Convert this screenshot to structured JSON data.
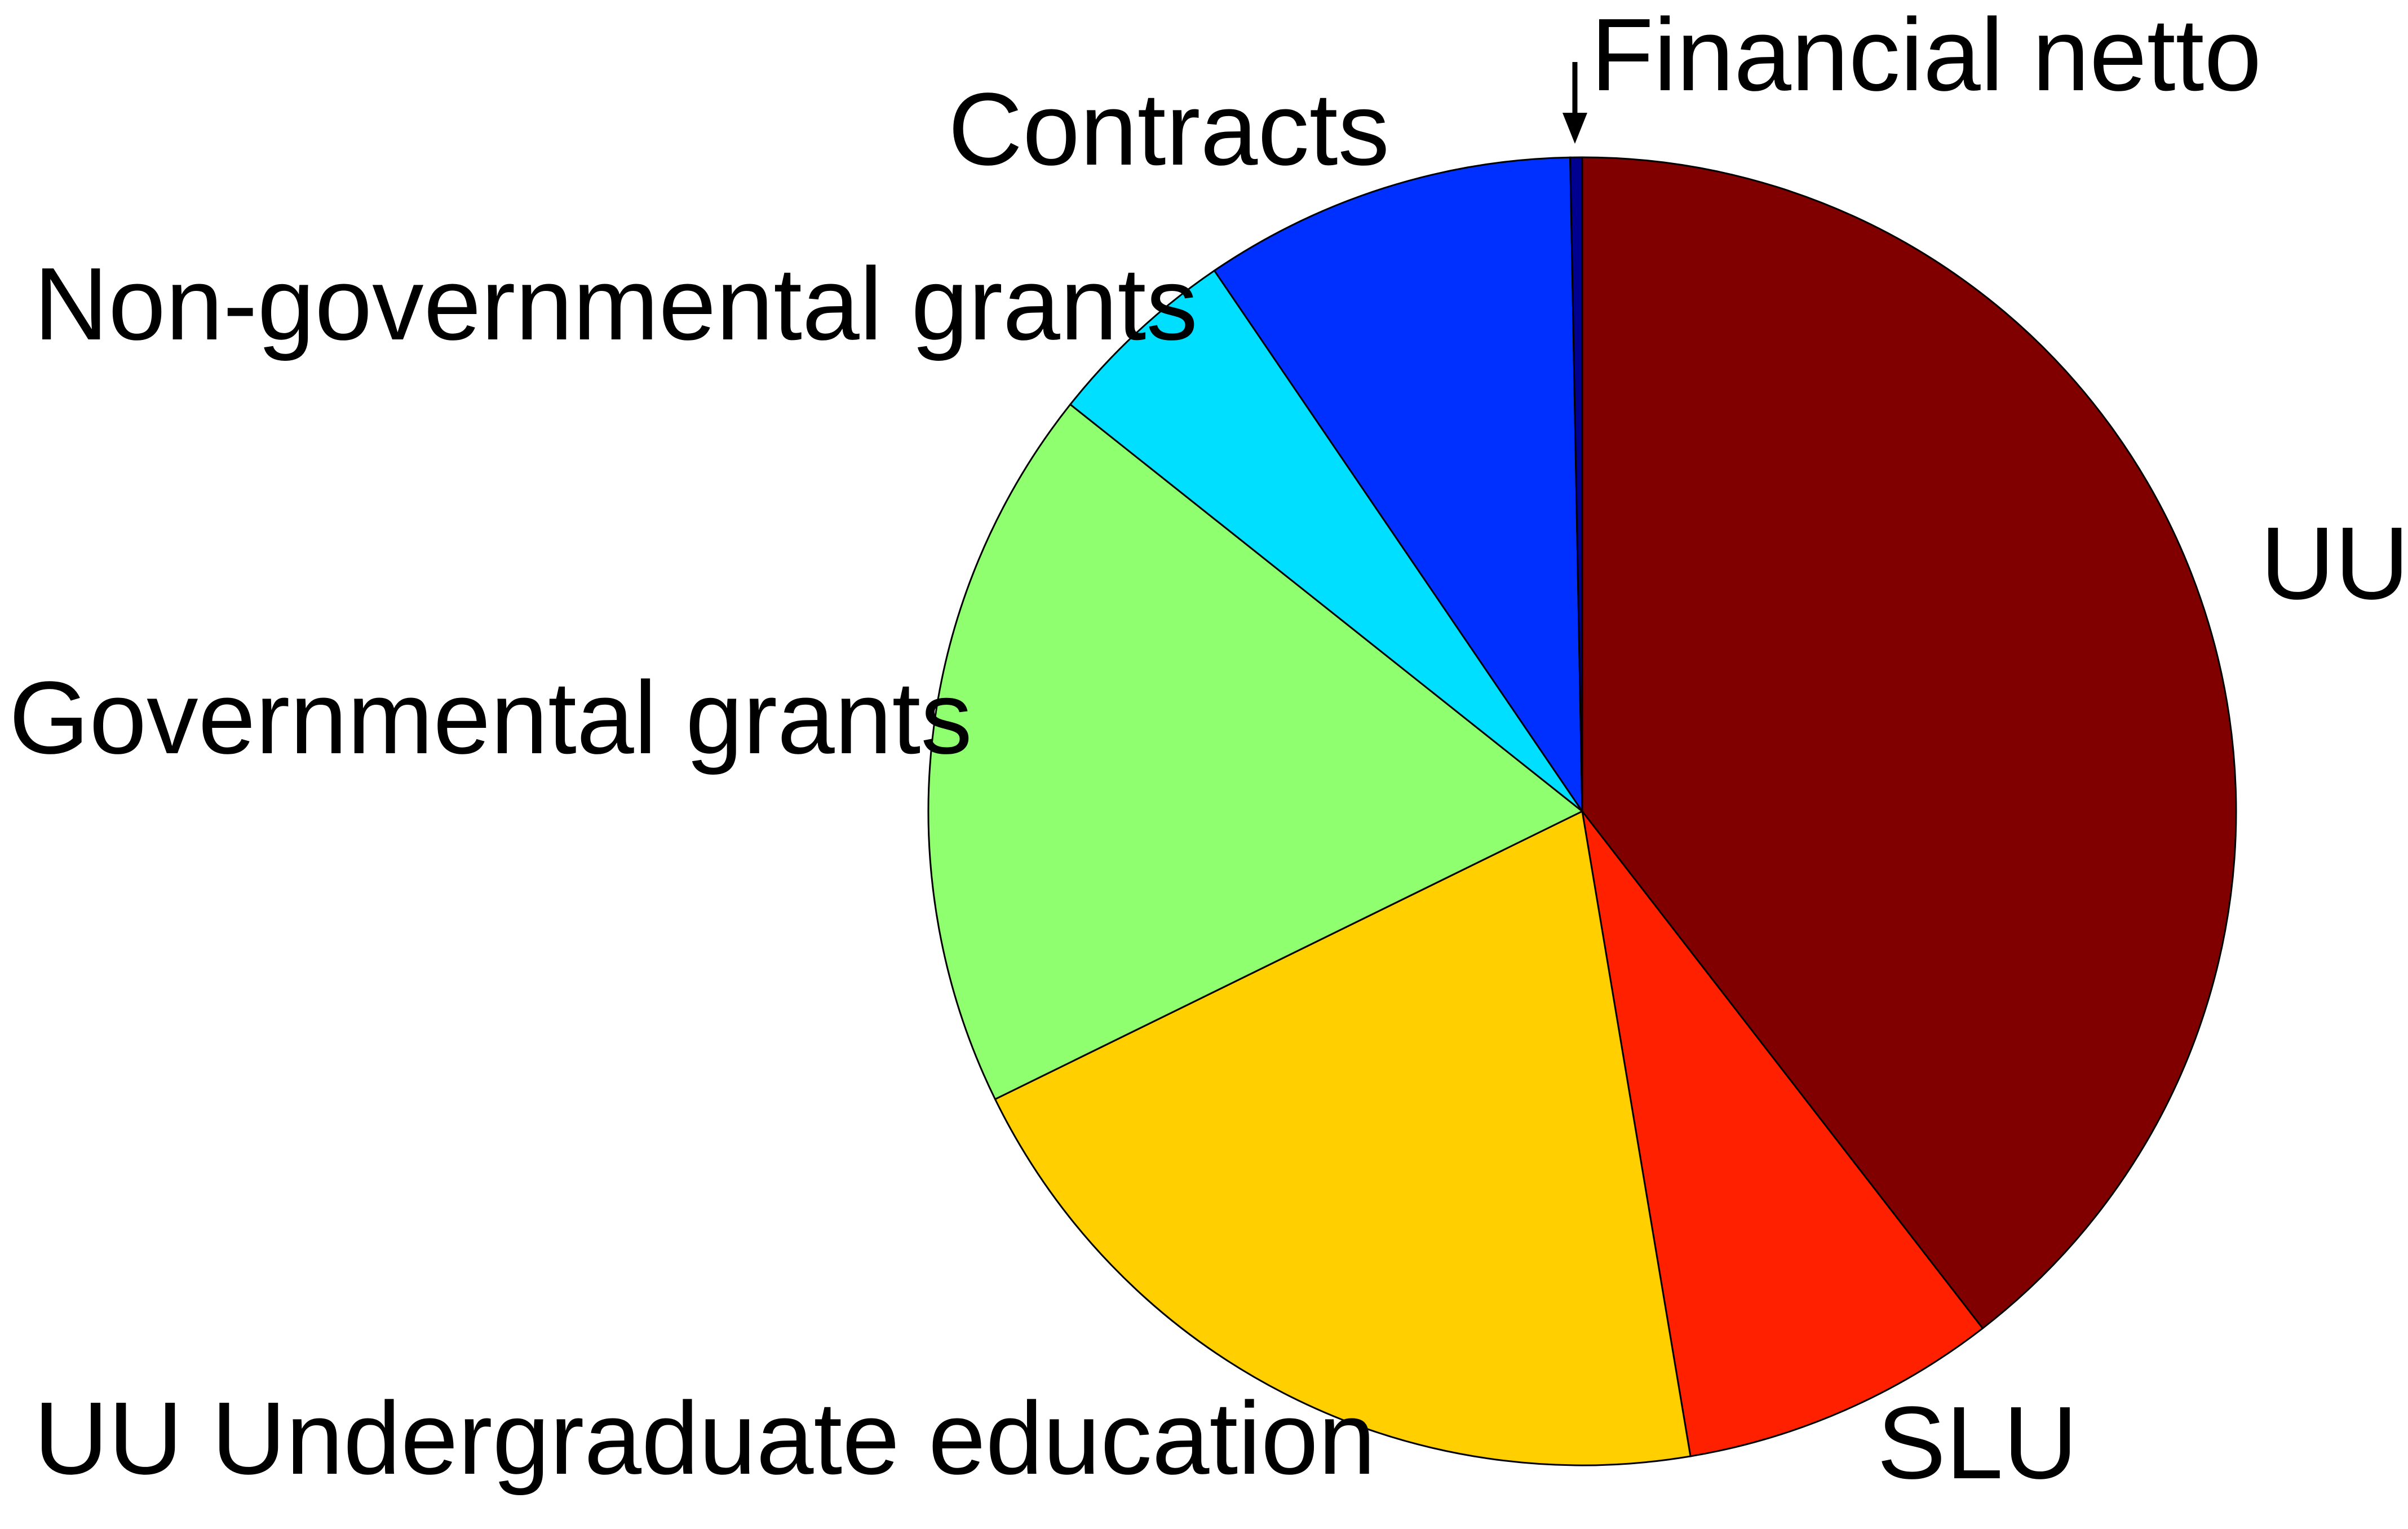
{
  "chart_data": {
    "type": "pie",
    "title": "",
    "start_angle_deg": 0,
    "direction": "clockwise",
    "slices": [
      {
        "label": "UU",
        "value": 40.3,
        "color": "#800000"
      },
      {
        "label": "SLU",
        "value": 8.0,
        "color": "#ff2000"
      },
      {
        "label": "UU Undergraduate education",
        "value": 20.8,
        "color": "#ffcf00"
      },
      {
        "label": "Governmental grants",
        "value": 18.3,
        "color": "#8fff70"
      },
      {
        "label": "Non-governmental grants",
        "value": 4.9,
        "color": "#00dfff"
      },
      {
        "label": "Contracts",
        "value": 9.4,
        "color": "#0030ff"
      },
      {
        "label": "Financial netto",
        "value": 0.3,
        "color": "#000090"
      }
    ],
    "legend": "none"
  }
}
